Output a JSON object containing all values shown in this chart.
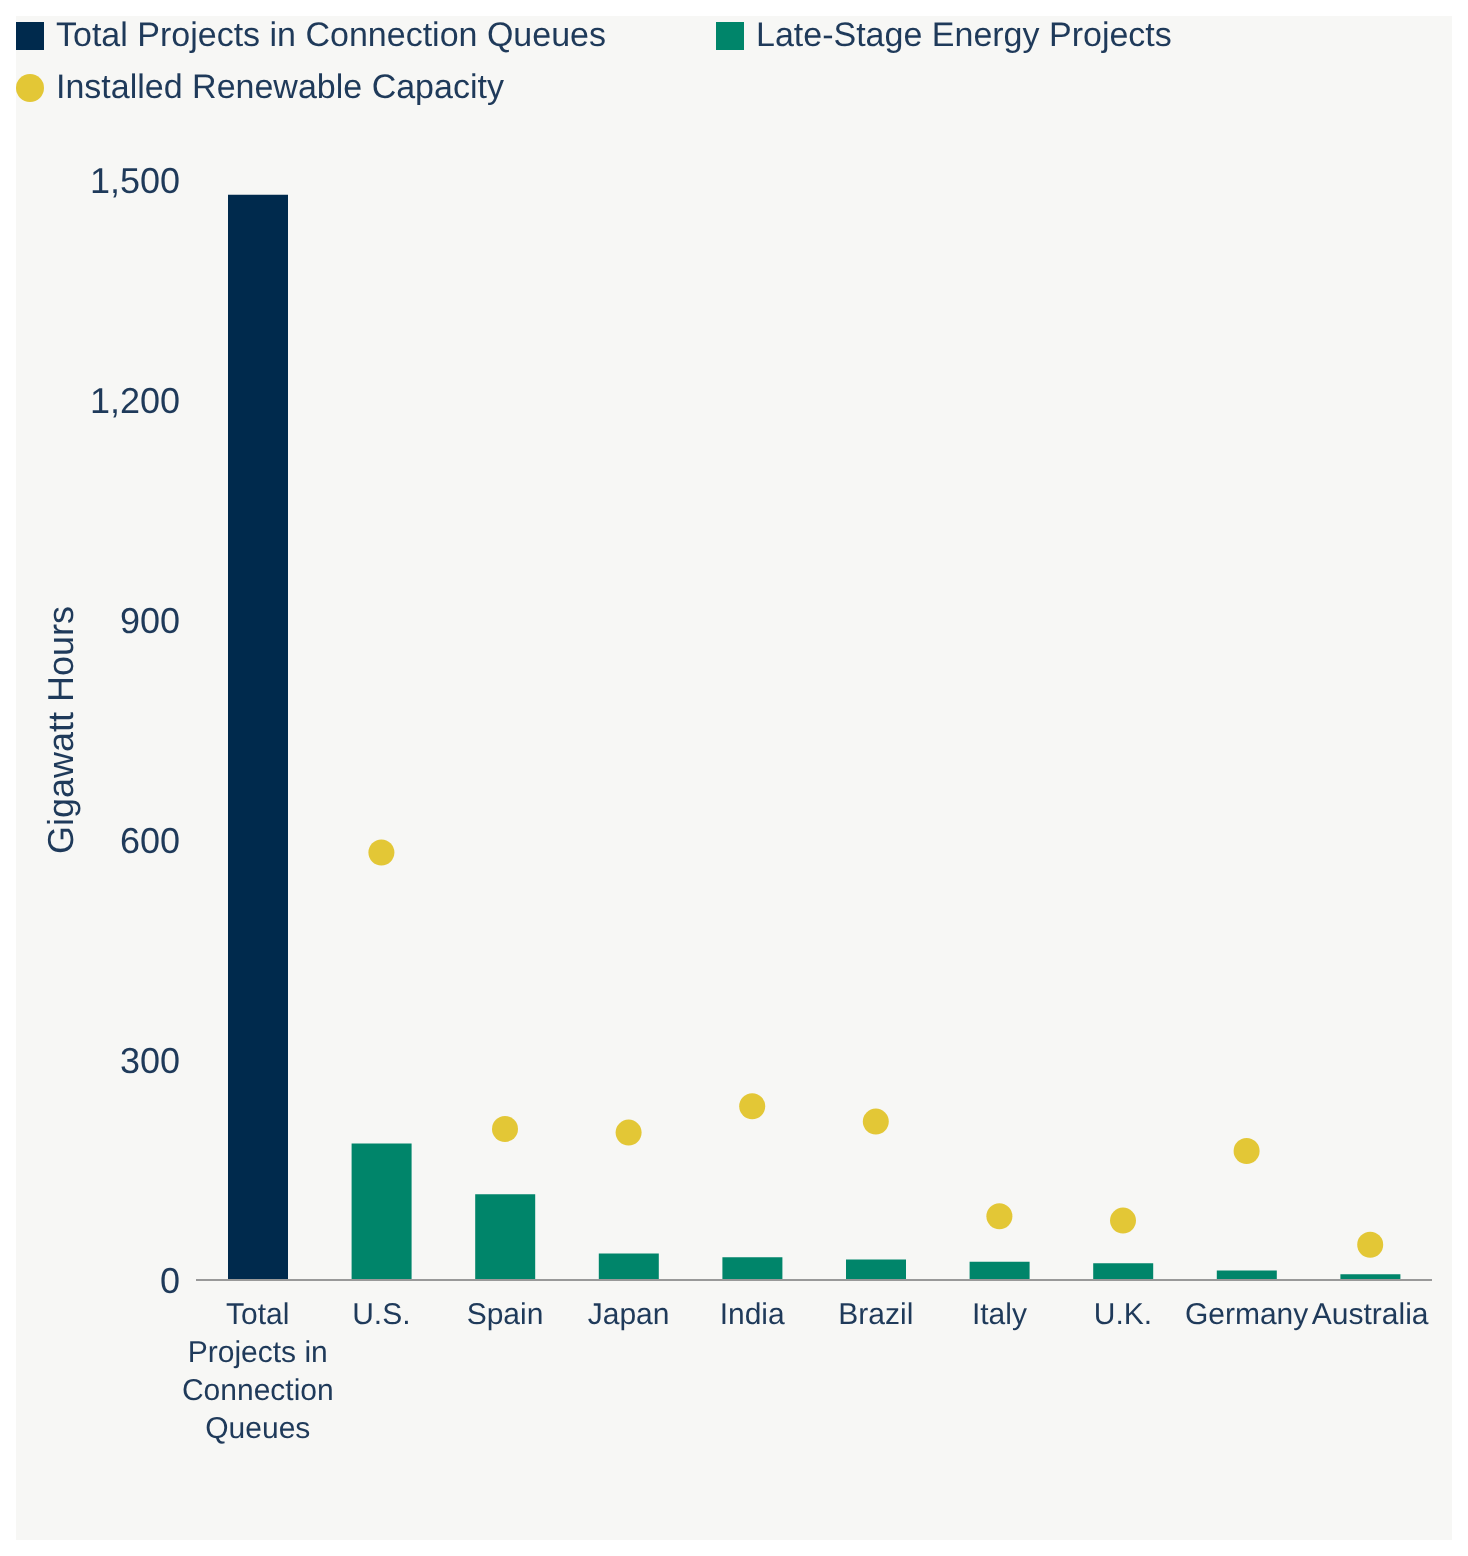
{
  "chart_data": {
    "type": "bar",
    "ylabel": "Gigawatt Hours",
    "categories": [
      "Total Projects in Connection Queues",
      "U.S.",
      "Spain",
      "Japan",
      "India",
      "Brazil",
      "Italy",
      "U.K.",
      "Germany",
      "Australia"
    ],
    "series": [
      {
        "name": "Total Projects in Connection Queues",
        "color": "#002a4d",
        "values": [
          1480,
          null,
          null,
          null,
          null,
          null,
          null,
          null,
          null,
          null
        ]
      },
      {
        "name": "Late-Stage Energy Projects",
        "color": "#00856a",
        "values": [
          null,
          186,
          117,
          36,
          31,
          28,
          25,
          23,
          13,
          8
        ]
      },
      {
        "name": "Installed Renewable Capacity",
        "type": "scatter",
        "color": "#e3c736",
        "values": [
          null,
          583,
          206,
          201,
          237,
          216,
          87,
          81,
          176,
          48
        ]
      }
    ],
    "stacked": true,
    "ylim": [
      0,
      1500
    ],
    "yticks": [
      0,
      300,
      600,
      900,
      {
        "value": 1200,
        "label": "1,200"
      },
      {
        "value": 1500,
        "label": "1,500"
      }
    ],
    "grid": false,
    "legend": "top left",
    "marker": "circle"
  }
}
